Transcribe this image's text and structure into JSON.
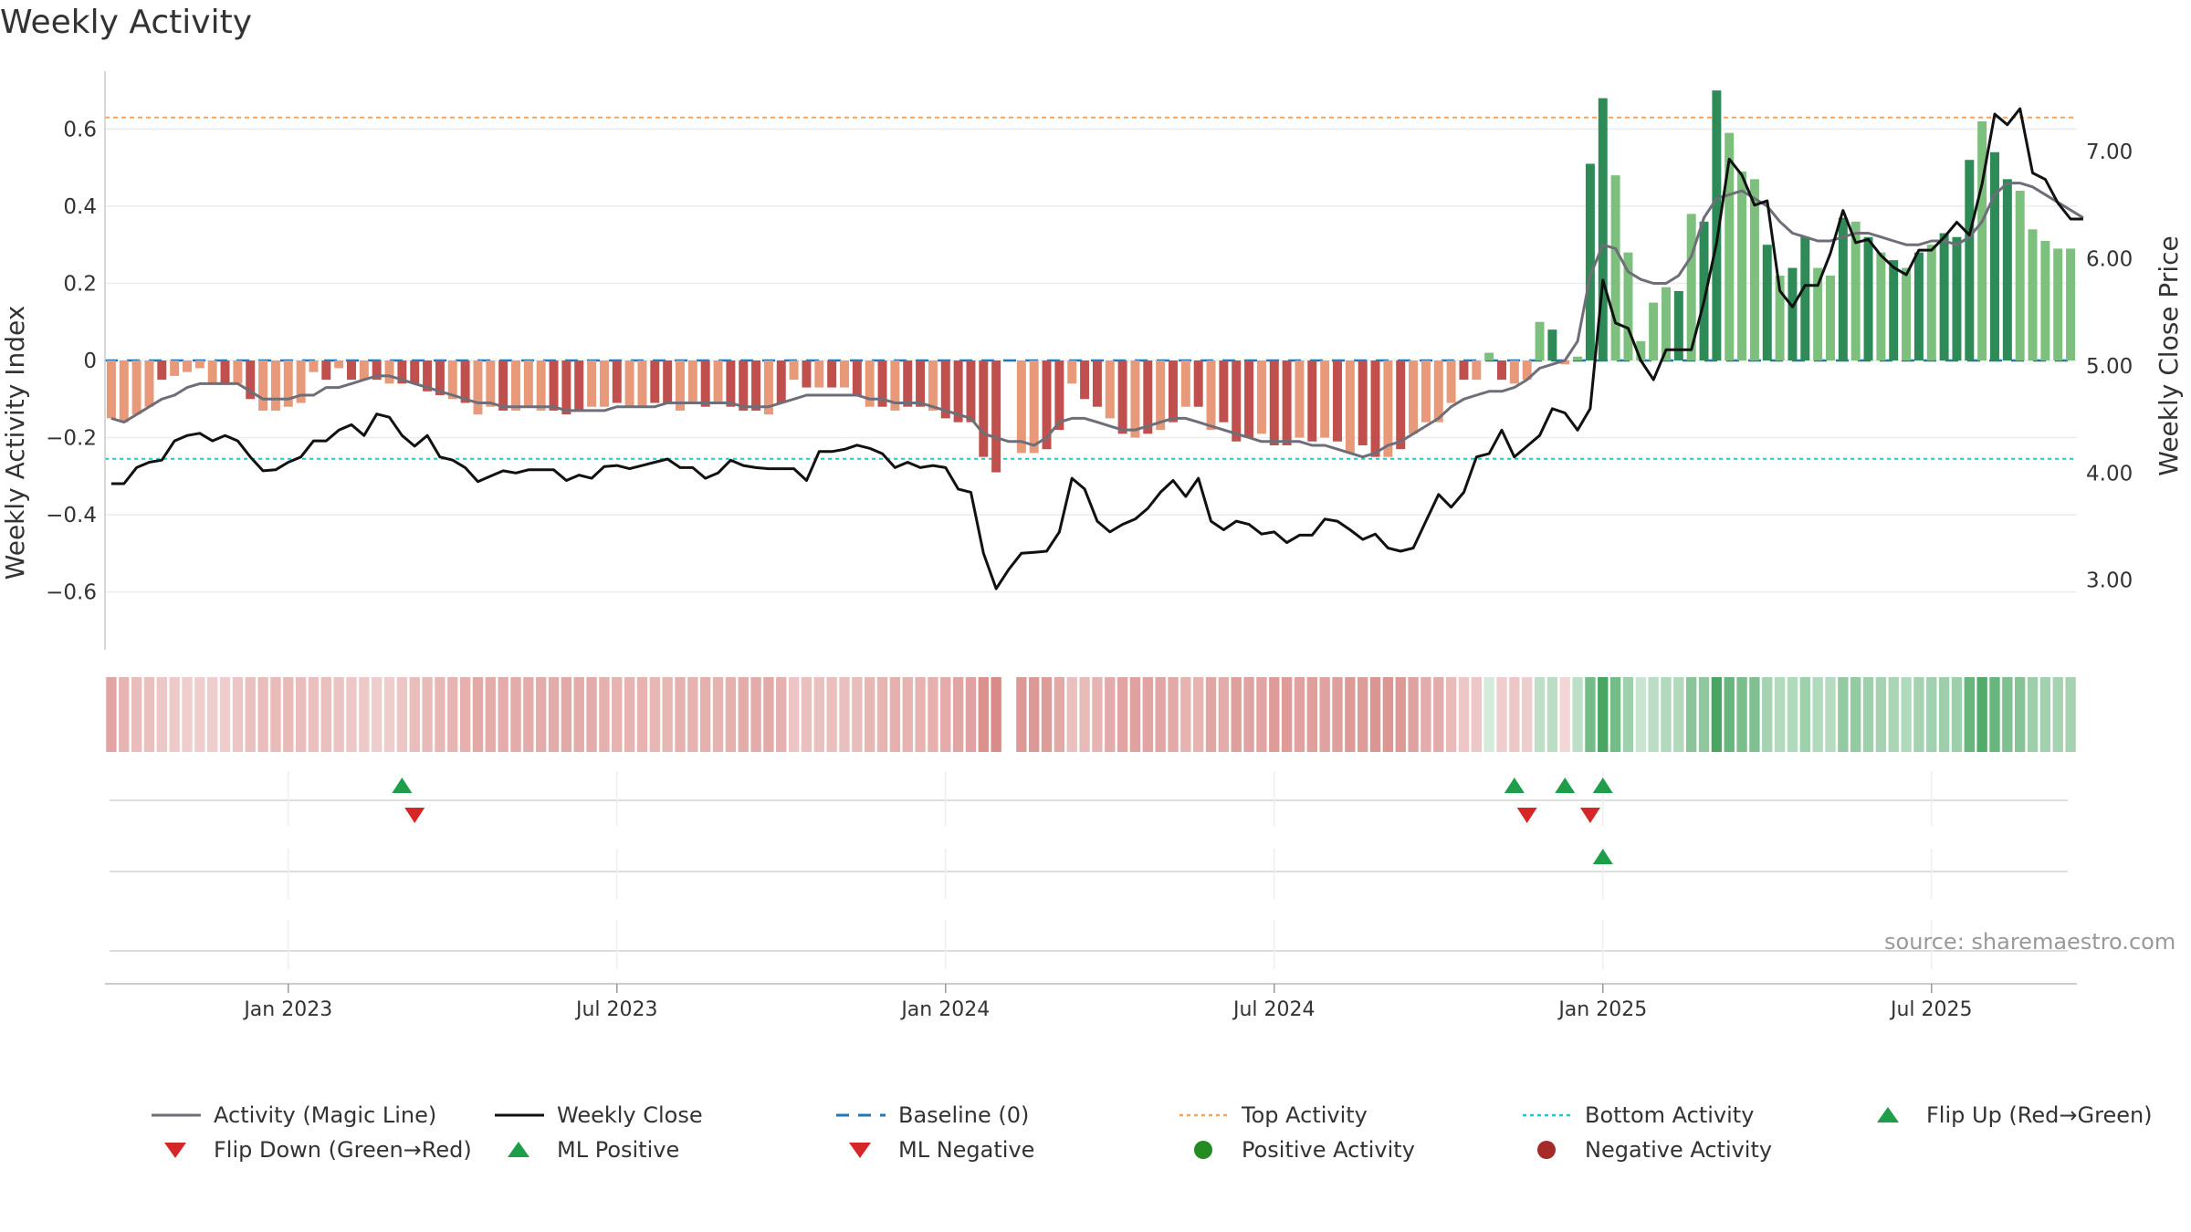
{
  "title": "Weekly Activity",
  "source": "source: sharemaestro.com",
  "colors": {
    "bar_pos_strong": "#2e8b57",
    "bar_pos_weak": "#7dbf7d",
    "bar_neg_strong": "#c0504d",
    "bar_neg_weak": "#e8997a",
    "magic_line": "#6e6e78",
    "close_line": "#111111",
    "baseline": "#1f77b4",
    "top_line": "#f4a460",
    "bottom_line": "#20c9c9",
    "flip_up": "#1e9e4a",
    "flip_down": "#d62728",
    "pos_dot": "#228b22",
    "neg_dot": "#a52a2a"
  },
  "chart_data": {
    "type": "bar+line",
    "ylabel_left": "Weekly Activity Index",
    "ylabel_right": "Weekly Close Price",
    "ylim_left": [
      -0.75,
      0.75
    ],
    "ylim_right": [
      2.35,
      7.75
    ],
    "yticks_left": [
      {
        "v": 0.6,
        "label": "0.6"
      },
      {
        "v": 0.4,
        "label": "0.4"
      },
      {
        "v": 0.2,
        "label": "0.2"
      },
      {
        "v": 0,
        "label": "0"
      },
      {
        "v": -0.2,
        "label": "−0.2"
      },
      {
        "v": -0.4,
        "label": "−0.4"
      },
      {
        "v": -0.6,
        "label": "−0.6"
      }
    ],
    "yticks_right": [
      {
        "v": 7,
        "label": "7.00"
      },
      {
        "v": 6,
        "label": "6.00"
      },
      {
        "v": 5,
        "label": "5.00"
      },
      {
        "v": 4,
        "label": "4.00"
      },
      {
        "v": 3,
        "label": "3.00"
      }
    ],
    "xticks": [
      {
        "i": 14,
        "label": "Jan 2023"
      },
      {
        "i": 40,
        "label": "Jul 2023"
      },
      {
        "i": 66,
        "label": "Jan 2024"
      },
      {
        "i": 92,
        "label": "Jul 2024"
      },
      {
        "i": 118,
        "label": "Jan 2025"
      },
      {
        "i": 144,
        "label": "Jul 2025"
      }
    ],
    "top_activity": 0.63,
    "bottom_activity": -0.255,
    "baseline": 0,
    "activity": [
      -0.15,
      -0.16,
      -0.14,
      -0.12,
      -0.05,
      -0.04,
      -0.03,
      -0.02,
      -0.06,
      -0.06,
      -0.06,
      -0.1,
      -0.13,
      -0.13,
      -0.12,
      -0.11,
      -0.03,
      -0.05,
      -0.02,
      -0.05,
      -0.05,
      -0.05,
      -0.06,
      -0.06,
      -0.06,
      -0.08,
      -0.09,
      -0.1,
      -0.11,
      -0.14,
      -0.12,
      -0.13,
      -0.13,
      -0.12,
      -0.13,
      -0.13,
      -0.14,
      -0.13,
      -0.12,
      -0.12,
      -0.11,
      -0.12,
      -0.12,
      -0.11,
      -0.11,
      -0.13,
      -0.11,
      -0.12,
      -0.11,
      -0.12,
      -0.13,
      -0.13,
      -0.14,
      -0.11,
      -0.05,
      -0.07,
      -0.07,
      -0.07,
      -0.07,
      -0.09,
      -0.12,
      -0.12,
      -0.13,
      -0.12,
      -0.12,
      -0.13,
      -0.15,
      -0.16,
      -0.16,
      -0.25,
      -0.29,
      0,
      -0.24,
      -0.24,
      -0.23,
      -0.18,
      -0.06,
      -0.1,
      -0.12,
      -0.15,
      -0.19,
      -0.2,
      -0.19,
      -0.18,
      -0.16,
      -0.12,
      -0.12,
      -0.18,
      -0.16,
      -0.21,
      -0.2,
      -0.19,
      -0.22,
      -0.22,
      -0.2,
      -0.21,
      -0.2,
      -0.21,
      -0.24,
      -0.22,
      -0.25,
      -0.25,
      -0.23,
      -0.19,
      -0.16,
      -0.16,
      -0.11,
      -0.05,
      -0.05,
      0.02,
      -0.05,
      -0.06,
      -0.05,
      0.1,
      0.08,
      -0.01,
      0.01,
      0.51,
      0.68,
      0.48,
      0.28,
      0.05,
      0.15,
      0.19,
      0.18,
      0.38,
      0.36,
      0.7,
      0.59,
      0.49,
      0.47,
      0.3,
      0.22,
      0.24,
      0.32,
      0.24,
      0.22,
      0.37,
      0.36,
      0.32,
      0.28,
      0.26,
      0.24,
      0.28,
      0.3,
      0.33,
      0.32,
      0.52,
      0.62,
      0.54,
      0.47,
      0.44,
      0.34,
      0.31,
      0.29,
      0.29
    ],
    "magic_line": [
      -0.15,
      -0.16,
      -0.14,
      -0.12,
      -0.1,
      -0.09,
      -0.07,
      -0.06,
      -0.06,
      -0.06,
      -0.06,
      -0.08,
      -0.1,
      -0.1,
      -0.1,
      -0.09,
      -0.09,
      -0.07,
      -0.07,
      -0.06,
      -0.05,
      -0.04,
      -0.04,
      -0.05,
      -0.06,
      -0.07,
      -0.08,
      -0.09,
      -0.1,
      -0.11,
      -0.11,
      -0.12,
      -0.12,
      -0.12,
      -0.12,
      -0.12,
      -0.13,
      -0.13,
      -0.13,
      -0.13,
      -0.12,
      -0.12,
      -0.12,
      -0.12,
      -0.11,
      -0.11,
      -0.11,
      -0.11,
      -0.11,
      -0.11,
      -0.12,
      -0.12,
      -0.12,
      -0.11,
      -0.1,
      -0.09,
      -0.09,
      -0.09,
      -0.09,
      -0.09,
      -0.1,
      -0.1,
      -0.11,
      -0.11,
      -0.11,
      -0.12,
      -0.13,
      -0.14,
      -0.15,
      -0.19,
      -0.2,
      -0.21,
      -0.21,
      -0.22,
      -0.2,
      -0.16,
      -0.15,
      -0.15,
      -0.16,
      -0.17,
      -0.18,
      -0.18,
      -0.17,
      -0.16,
      -0.15,
      -0.15,
      -0.16,
      -0.17,
      -0.18,
      -0.19,
      -0.2,
      -0.21,
      -0.21,
      -0.21,
      -0.21,
      -0.22,
      -0.22,
      -0.23,
      -0.24,
      -0.25,
      -0.24,
      -0.22,
      -0.21,
      -0.19,
      -0.17,
      -0.15,
      -0.12,
      -0.1,
      -0.09,
      -0.08,
      -0.08,
      -0.07,
      -0.05,
      -0.02,
      -0.01,
      0,
      0.05,
      0.22,
      0.3,
      0.29,
      0.23,
      0.21,
      0.2,
      0.2,
      0.22,
      0.27,
      0.37,
      0.42,
      0.43,
      0.44,
      0.42,
      0.4,
      0.36,
      0.33,
      0.32,
      0.31,
      0.31,
      0.32,
      0.33,
      0.33,
      0.32,
      0.31,
      0.3,
      0.3,
      0.31,
      0.31,
      0.3,
      0.32,
      0.36,
      0.43,
      0.46,
      0.46,
      0.45,
      0.43,
      0.41,
      0.39,
      0.37
    ],
    "weekly_close": [
      3.9,
      3.9,
      4.05,
      4.1,
      4.12,
      4.3,
      4.35,
      4.37,
      4.3,
      4.35,
      4.3,
      4.15,
      4.02,
      4.03,
      4.1,
      4.15,
      4.3,
      4.3,
      4.4,
      4.45,
      4.35,
      4.55,
      4.52,
      4.35,
      4.25,
      4.35,
      4.15,
      4.12,
      4.05,
      3.92,
      3.97,
      4.02,
      4.0,
      4.03,
      4.03,
      4.03,
      3.93,
      3.98,
      3.95,
      4.06,
      4.07,
      4.04,
      4.07,
      4.1,
      4.13,
      4.05,
      4.05,
      3.95,
      4.0,
      4.12,
      4.07,
      4.05,
      4.04,
      4.04,
      4.04,
      3.93,
      4.2,
      4.2,
      4.22,
      4.26,
      4.23,
      4.18,
      4.05,
      4.1,
      4.05,
      4.07,
      4.05,
      3.85,
      3.82,
      3.25,
      2.92,
      3.1,
      3.25,
      3.26,
      3.27,
      3.45,
      3.95,
      3.85,
      3.55,
      3.45,
      3.52,
      3.57,
      3.67,
      3.82,
      3.93,
      3.78,
      3.95,
      3.55,
      3.47,
      3.55,
      3.52,
      3.43,
      3.45,
      3.35,
      3.42,
      3.42,
      3.57,
      3.55,
      3.47,
      3.38,
      3.43,
      3.3,
      3.27,
      3.3,
      3.55,
      3.8,
      3.68,
      3.82,
      4.15,
      4.18,
      4.4,
      4.15,
      4.25,
      4.35,
      4.6,
      4.56,
      4.4,
      4.6,
      5.8,
      5.4,
      5.35,
      5.05,
      4.87,
      5.15,
      5.15,
      5.15,
      5.6,
      6.15,
      6.93,
      6.78,
      6.5,
      6.54,
      5.7,
      5.55,
      5.75,
      5.75,
      6.05,
      6.45,
      6.15,
      6.18,
      6.03,
      5.92,
      5.85,
      6.08,
      6.08,
      6.2,
      6.34,
      6.22,
      6.7,
      7.35,
      7.25,
      7.4,
      6.8,
      6.74,
      6.52,
      6.37,
      6.37
    ],
    "strip_intensity": [
      0.55,
      0.45,
      0.4,
      0.38,
      0.34,
      0.32,
      0.3,
      0.3,
      0.3,
      0.3,
      0.35,
      0.38,
      0.4,
      0.42,
      0.42,
      0.4,
      0.38,
      0.38,
      0.36,
      0.34,
      0.32,
      0.3,
      0.3,
      0.35,
      0.4,
      0.42,
      0.44,
      0.45,
      0.48,
      0.52,
      0.5,
      0.5,
      0.5,
      0.5,
      0.5,
      0.5,
      0.52,
      0.5,
      0.5,
      0.48,
      0.46,
      0.46,
      0.46,
      0.44,
      0.44,
      0.48,
      0.46,
      0.48,
      0.46,
      0.48,
      0.5,
      0.5,
      0.52,
      0.48,
      0.35,
      0.38,
      0.38,
      0.38,
      0.38,
      0.4,
      0.44,
      0.45,
      0.48,
      0.46,
      0.46,
      0.48,
      0.5,
      0.54,
      0.56,
      0.66,
      0.7,
      0.3,
      0.62,
      0.62,
      0.6,
      0.52,
      0.38,
      0.42,
      0.45,
      0.5,
      0.55,
      0.56,
      0.55,
      0.54,
      0.52,
      0.46,
      0.46,
      0.54,
      0.5,
      0.58,
      0.56,
      0.55,
      0.6,
      0.6,
      0.56,
      0.58,
      0.56,
      0.58,
      0.62,
      0.6,
      0.64,
      0.64,
      0.62,
      0.56,
      0.5,
      0.5,
      0.42,
      0.34,
      0.34,
      0.2,
      0.3,
      0.34,
      0.3,
      0.3,
      0.32,
      0.25,
      0.3,
      0.65,
      0.85,
      0.65,
      0.45,
      0.25,
      0.32,
      0.36,
      0.36,
      0.55,
      0.52,
      0.85,
      0.7,
      0.62,
      0.6,
      0.42,
      0.35,
      0.36,
      0.45,
      0.36,
      0.34,
      0.5,
      0.5,
      0.45,
      0.42,
      0.4,
      0.36,
      0.42,
      0.44,
      0.46,
      0.46,
      0.7,
      0.8,
      0.7,
      0.6,
      0.56,
      0.46,
      0.44,
      0.42,
      0.42
    ],
    "strong_weeks": [
      4,
      9,
      11,
      17,
      19,
      21,
      23,
      24,
      25,
      26,
      28,
      31,
      35,
      36,
      37,
      40,
      43,
      44,
      47,
      49,
      50,
      51,
      53,
      55,
      57,
      59,
      61,
      63,
      64,
      66,
      67,
      68,
      69,
      70,
      74,
      75,
      77,
      78,
      80,
      82,
      84,
      86,
      88,
      89,
      90,
      92,
      93,
      95,
      97,
      99,
      100,
      102,
      107,
      110,
      114,
      117,
      118,
      124,
      126,
      127,
      131,
      133,
      134,
      137,
      139,
      141,
      143,
      145,
      146,
      147,
      149,
      150
    ],
    "flip_up_weeks": [
      23,
      111,
      115,
      118
    ],
    "flip_down_weeks": [
      24,
      112,
      117
    ],
    "ml_positive_weeks": [
      118
    ],
    "ml_negative_weeks": [],
    "positive_activity_weeks": [],
    "negative_activity_weeks": []
  },
  "legend": [
    {
      "key": "magic",
      "label": "Activity (Magic Line)"
    },
    {
      "key": "close",
      "label": "Weekly Close"
    },
    {
      "key": "baseline",
      "label": "Baseline (0)"
    },
    {
      "key": "top",
      "label": "Top Activity"
    },
    {
      "key": "bottom",
      "label": "Bottom Activity"
    },
    {
      "key": "flipup",
      "label": "Flip Up (Red→Green)"
    },
    {
      "key": "flipdown",
      "label": "Flip Down (Green→Red)"
    },
    {
      "key": "mlpos",
      "label": "ML Positive"
    },
    {
      "key": "mlneg",
      "label": "ML Negative"
    },
    {
      "key": "posdot",
      "label": "Positive Activity"
    },
    {
      "key": "negdot",
      "label": "Negative Activity"
    }
  ]
}
